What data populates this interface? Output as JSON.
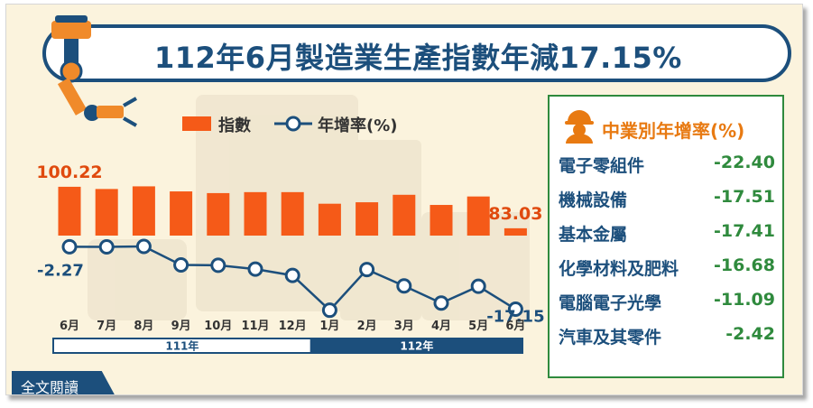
{
  "title": "112年6月製造業生產指數年減17.15%",
  "legend": {
    "bar_label": "指數",
    "line_label": "年增率(%)"
  },
  "chart_data": {
    "type": "bar",
    "categories": [
      "6月",
      "7月",
      "8月",
      "9月",
      "10月",
      "11月",
      "12月",
      "1月",
      "2月",
      "3月",
      "4月",
      "5月",
      "6月"
    ],
    "series": [
      {
        "name": "指數",
        "type": "bar",
        "values": [
          100.22,
          99.3,
          100.4,
          98.3,
          97.6,
          98.0,
          98.0,
          93.2,
          93.8,
          96.9,
          92.7,
          96.2,
          83.03
        ]
      },
      {
        "name": "年增率(%)",
        "type": "line",
        "values": [
          -2.27,
          -2.3,
          -2.2,
          -6.6,
          -6.7,
          -7.6,
          -9.1,
          -17.4,
          -7.7,
          -11.6,
          -15.7,
          -11.7,
          -17.15
        ]
      }
    ],
    "bar_labels": [
      {
        "index": 0,
        "text": "100.22"
      },
      {
        "index": 12,
        "text": "83.03"
      }
    ],
    "line_labels": [
      {
        "index": 0,
        "text": "-2.27"
      },
      {
        "index": 12,
        "text": "-17.15"
      }
    ],
    "year_groups": [
      {
        "label": "111年",
        "start": 0,
        "end": 6
      },
      {
        "label": "112年",
        "start": 7,
        "end": 12
      }
    ],
    "colors": {
      "bar": "#f55a18",
      "line": "#1c4f7c",
      "label_bar": "#e04a0e",
      "label_line": "#1c4f7c"
    }
  },
  "panel": {
    "title": "中業別年增率(%)",
    "rows": [
      {
        "name": "電子零組件",
        "value": "-22.40"
      },
      {
        "name": "機械設備",
        "value": "-17.51"
      },
      {
        "name": "基本金屬",
        "value": "-17.41"
      },
      {
        "name": "化學材料及肥料",
        "value": "-16.68"
      },
      {
        "name": "電腦電子光學",
        "value": "-11.09"
      },
      {
        "name": "汽車及其零件",
        "value": "-2.42"
      }
    ]
  },
  "button": {
    "full_read": "全文閱讀"
  }
}
